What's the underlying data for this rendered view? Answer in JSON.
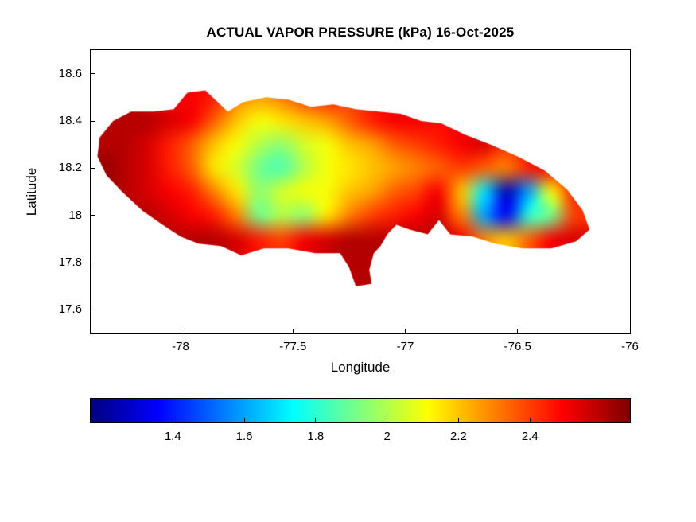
{
  "figure": {
    "background": "#ffffff"
  },
  "chart_data": {
    "type": "heatmap",
    "title": "ACTUAL VAPOR PRESSURE (kPa) 16-Oct-2025",
    "xlabel": "Longitude",
    "ylabel": "Latitude",
    "value_units": "kPa",
    "colormap": "jet",
    "grid": "off",
    "vmin": 1.17,
    "vmax": 2.68,
    "xlim": [
      -78.4,
      -76.0
    ],
    "ylim": [
      17.5,
      18.7
    ],
    "xticks": [
      -78,
      -77.5,
      -77,
      -76.5,
      -76
    ],
    "xtick_labels": [
      "-78",
      "-77.5",
      "-77",
      "-76.5",
      "-76"
    ],
    "yticks": [
      17.6,
      17.8,
      18,
      18.2,
      18.4,
      18.6
    ],
    "ytick_labels": [
      "17.6",
      "17.8",
      "18",
      "18.2",
      "18.4",
      "18.6"
    ],
    "colorbar": {
      "orientation": "horizontal",
      "position": "south",
      "vmin": 1.17,
      "vmax": 2.68,
      "ticks": [
        1.4,
        1.6,
        1.8,
        2,
        2.2,
        2.4
      ],
      "tick_labels": [
        "1.4",
        "1.6",
        "1.8",
        "2",
        "2.2",
        "2.4"
      ]
    },
    "lon_centers": [
      -78.35,
      -78.25,
      -78.15,
      -78.05,
      -77.95,
      -77.85,
      -77.75,
      -77.65,
      -77.55,
      -77.45,
      -77.35,
      -77.25,
      -77.15,
      -77.05,
      -76.95,
      -76.85,
      -76.75,
      -76.65,
      -76.55,
      -76.45,
      -76.35,
      -76.25,
      -76.15
    ],
    "lat_centers": [
      18.5,
      18.4,
      18.3,
      18.2,
      18.1,
      18.0,
      17.9,
      17.8,
      17.7
    ],
    "lon_edges": [
      -78.4,
      -76.1
    ],
    "lat_edges": [
      17.65,
      18.55
    ],
    "values_kpa": [
      [
        null,
        null,
        null,
        2.5,
        2.5,
        2.45,
        2.3,
        2.25,
        2.3,
        2.4,
        2.45,
        2.4,
        null,
        null,
        null,
        null,
        null,
        null,
        null,
        null,
        null,
        null,
        null
      ],
      [
        null,
        2.6,
        2.6,
        2.55,
        2.5,
        2.35,
        2.2,
        2.1,
        2.15,
        2.2,
        2.25,
        2.35,
        2.45,
        2.5,
        2.5,
        null,
        null,
        null,
        null,
        null,
        null,
        null,
        null
      ],
      [
        2.6,
        2.6,
        2.55,
        2.45,
        2.35,
        2.2,
        2.1,
        2.0,
        1.95,
        2.05,
        2.1,
        2.2,
        2.25,
        2.35,
        2.4,
        2.45,
        2.5,
        2.55,
        null,
        null,
        null,
        null,
        null
      ],
      [
        2.65,
        2.6,
        2.55,
        2.45,
        2.35,
        2.15,
        2.05,
        1.9,
        1.85,
        2.0,
        2.1,
        2.15,
        2.2,
        2.25,
        2.3,
        2.35,
        2.4,
        2.35,
        2.3,
        2.45,
        2.5,
        null,
        null
      ],
      [
        null,
        2.6,
        2.55,
        2.5,
        2.45,
        2.3,
        2.15,
        1.95,
        2.05,
        2.1,
        2.1,
        2.2,
        2.25,
        2.35,
        2.4,
        2.5,
        2.2,
        1.7,
        1.25,
        1.6,
        2.1,
        2.45,
        null
      ],
      [
        null,
        null,
        2.6,
        2.55,
        2.5,
        2.45,
        2.3,
        1.9,
        2.0,
        1.95,
        2.15,
        2.3,
        2.4,
        2.45,
        2.5,
        2.55,
        2.3,
        1.6,
        1.35,
        1.8,
        1.9,
        2.4,
        null
      ],
      [
        null,
        null,
        null,
        2.6,
        2.6,
        2.6,
        2.55,
        2.45,
        2.4,
        2.5,
        2.55,
        2.6,
        2.6,
        2.6,
        2.6,
        2.6,
        2.5,
        2.3,
        2.2,
        2.35,
        2.5,
        2.55,
        null
      ],
      [
        null,
        null,
        null,
        null,
        null,
        null,
        null,
        null,
        null,
        null,
        2.6,
        2.6,
        2.6,
        null,
        null,
        null,
        null,
        null,
        null,
        null,
        null,
        null,
        null
      ],
      [
        null,
        null,
        null,
        null,
        null,
        null,
        null,
        null,
        null,
        null,
        null,
        2.6,
        2.6,
        null,
        null,
        null,
        null,
        null,
        null,
        null,
        null,
        null,
        null
      ]
    ],
    "island_outline": [
      [
        -78.37,
        18.25
      ],
      [
        -78.36,
        18.33
      ],
      [
        -78.3,
        18.4
      ],
      [
        -78.22,
        18.44
      ],
      [
        -78.12,
        18.44
      ],
      [
        -78.03,
        18.45
      ],
      [
        -77.97,
        18.52
      ],
      [
        -77.89,
        18.53
      ],
      [
        -77.79,
        18.44
      ],
      [
        -77.72,
        18.48
      ],
      [
        -77.62,
        18.5
      ],
      [
        -77.52,
        18.49
      ],
      [
        -77.42,
        18.46
      ],
      [
        -77.32,
        18.47
      ],
      [
        -77.22,
        18.45
      ],
      [
        -77.12,
        18.44
      ],
      [
        -77.02,
        18.43
      ],
      [
        -76.93,
        18.4
      ],
      [
        -76.84,
        18.39
      ],
      [
        -76.73,
        18.34
      ],
      [
        -76.62,
        18.3
      ],
      [
        -76.5,
        18.25
      ],
      [
        -76.38,
        18.19
      ],
      [
        -76.28,
        18.11
      ],
      [
        -76.21,
        18.02
      ],
      [
        -76.18,
        17.94
      ],
      [
        -76.24,
        17.89
      ],
      [
        -76.35,
        17.86
      ],
      [
        -76.48,
        17.86
      ],
      [
        -76.6,
        17.88
      ],
      [
        -76.7,
        17.91
      ],
      [
        -76.8,
        17.92
      ],
      [
        -76.85,
        17.98
      ],
      [
        -76.9,
        17.92
      ],
      [
        -76.98,
        17.94
      ],
      [
        -77.04,
        17.96
      ],
      [
        -77.08,
        17.92
      ],
      [
        -77.11,
        17.87
      ],
      [
        -77.14,
        17.84
      ],
      [
        -77.16,
        17.77
      ],
      [
        -77.15,
        17.71
      ],
      [
        -77.22,
        17.7
      ],
      [
        -77.25,
        17.78
      ],
      [
        -77.29,
        17.84
      ],
      [
        -77.4,
        17.84
      ],
      [
        -77.52,
        17.86
      ],
      [
        -77.63,
        17.86
      ],
      [
        -77.73,
        17.83
      ],
      [
        -77.82,
        17.87
      ],
      [
        -77.92,
        17.88
      ],
      [
        -78.0,
        17.91
      ],
      [
        -78.08,
        17.96
      ],
      [
        -78.17,
        18.02
      ],
      [
        -78.26,
        18.1
      ],
      [
        -78.33,
        18.17
      ]
    ]
  }
}
